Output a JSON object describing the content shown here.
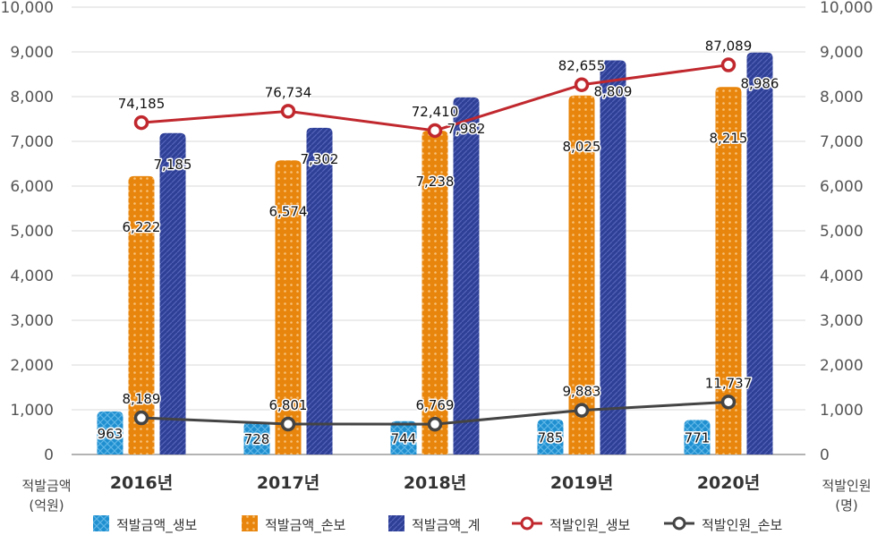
{
  "chart_data": {
    "type": "bar",
    "categories": [
      "2016년",
      "2017년",
      "2018년",
      "2019년",
      "2020년"
    ],
    "left_axis": {
      "title_line1": "적발금액",
      "title_line2": "(억원)",
      "ylim": [
        0,
        10000
      ],
      "ticks": [
        "0",
        "1,000",
        "2,000",
        "3,000",
        "4,000",
        "5,000",
        "6,000",
        "7,000",
        "8,000",
        "9,000",
        "10,000"
      ]
    },
    "right_axis": {
      "title_line1": "적발인원",
      "title_line2": "(명)",
      "ticks": [
        "0",
        "1,000",
        "2,000",
        "3,000",
        "4,000",
        "5,000",
        "6,000",
        "7,000",
        "8,000",
        "9,000",
        "10,000"
      ]
    },
    "bar_series": [
      {
        "name": "적발금액_생보",
        "color": "#1f8fd0",
        "pattern": "cross-hatch",
        "values": [
          963,
          728,
          744,
          785,
          771
        ],
        "labels": [
          "963",
          "728",
          "744",
          "785",
          "771"
        ]
      },
      {
        "name": "적발금액_손보",
        "color": "#e8850c",
        "pattern": "dots",
        "values": [
          6222,
          6574,
          7238,
          8025,
          8215
        ],
        "labels": [
          "6,222",
          "6,574",
          "7,238",
          "8,025",
          "8,215"
        ]
      },
      {
        "name": "적발금액_계",
        "color": "#2e3f96",
        "pattern": "diagonal",
        "values": [
          7185,
          7302,
          7982,
          8809,
          8986
        ],
        "labels": [
          "7,185",
          "7,302",
          "7,982",
          "8,809",
          "8,986"
        ]
      }
    ],
    "line_series": [
      {
        "name": "적발인원_생보",
        "color": "#c0282e",
        "values": [
          74185,
          76734,
          72410,
          82655,
          87089
        ],
        "labels": [
          "74,185",
          "76,734",
          "72,410",
          "82,655",
          "87,089"
        ]
      },
      {
        "name": "적발인원_손보",
        "color": "#444444",
        "values": [
          8189,
          6801,
          6769,
          9883,
          11737
        ],
        "labels": [
          "8,189",
          "6,801",
          "6,769",
          "9,883",
          "11,737"
        ]
      }
    ],
    "grid": true,
    "legend_position": "bottom"
  }
}
